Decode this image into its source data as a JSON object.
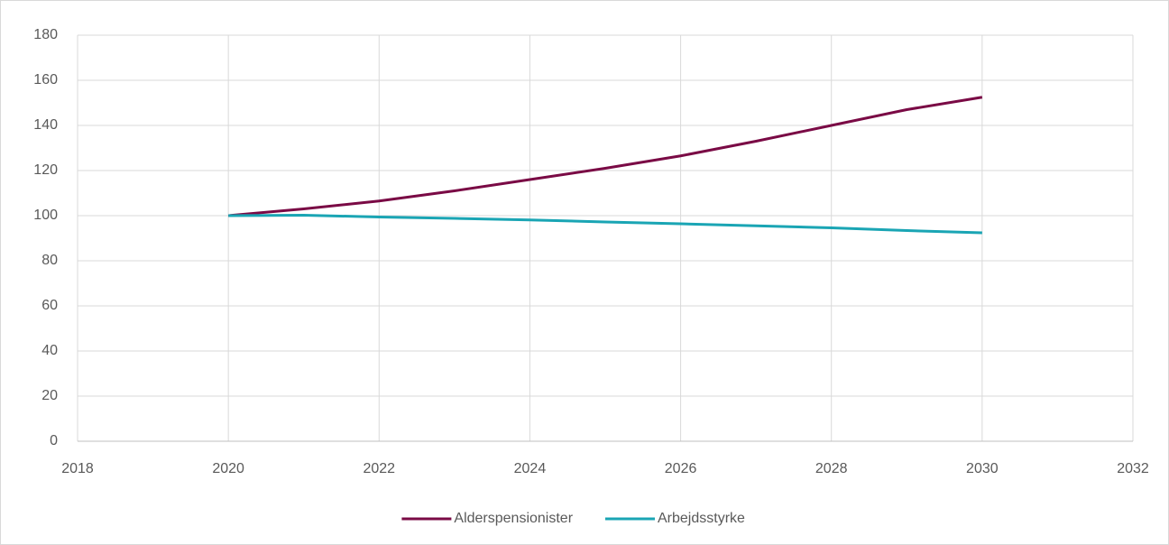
{
  "chart_data": {
    "type": "line",
    "x": [
      2020,
      2021,
      2022,
      2023,
      2024,
      2025,
      2026,
      2027,
      2028,
      2029,
      2030
    ],
    "series": [
      {
        "name": "Alderspensionister",
        "color": "#7a0a45",
        "values": [
          100,
          103,
          106.5,
          111,
          116,
          121,
          126.5,
          133,
          140,
          147,
          152.5
        ]
      },
      {
        "name": "Arbejdsstyrke",
        "color": "#1aa5b4",
        "values": [
          100,
          100.2,
          99.4,
          98.8,
          98.1,
          97.2,
          96.4,
          95.5,
          94.6,
          93.4,
          92.4
        ]
      }
    ],
    "xlim": [
      2018,
      2032
    ],
    "xticks": [
      2018,
      2020,
      2022,
      2024,
      2026,
      2028,
      2030,
      2032
    ],
    "ylim": [
      0,
      180
    ],
    "yticks": [
      0,
      20,
      40,
      60,
      80,
      100,
      120,
      140,
      160,
      180
    ],
    "grid": true,
    "legend": "bottom"
  }
}
